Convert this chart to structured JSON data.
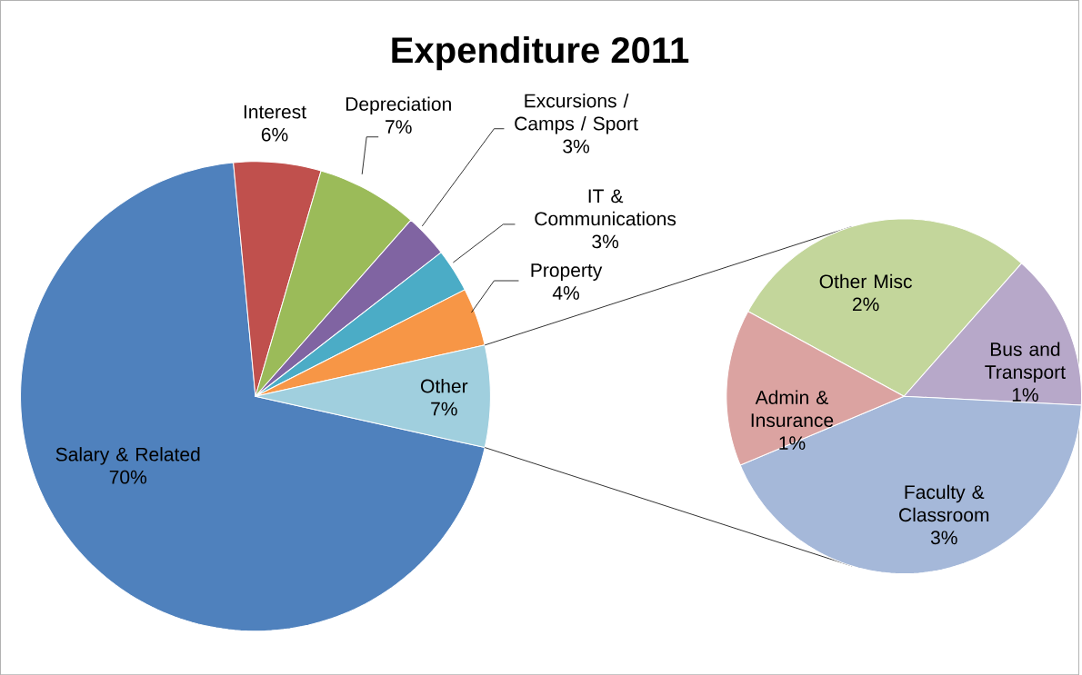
{
  "chart_data": [
    {
      "type": "pie",
      "title": "Expenditure 2011",
      "categories": [
        "Salary & Related",
        "Interest",
        "Depreciation",
        "Excursions / Camps / Sport",
        "IT & Communications",
        "Property",
        "Other"
      ],
      "values": [
        70,
        6,
        7,
        3,
        3,
        4,
        7
      ],
      "colors": [
        "#4f81bd",
        "#c0504d",
        "#9bbb59",
        "#8064a2",
        "#4bacc6",
        "#f79646",
        "#a0cfde"
      ],
      "value_labels": [
        "70%",
        "6%",
        "7%",
        "3%",
        "3%",
        "4%",
        "7%"
      ]
    },
    {
      "type": "pie",
      "categories": [
        "Other Misc",
        "Bus and Transport",
        "Faculty & Classroom",
        "Admin & Insurance"
      ],
      "values": [
        2,
        1,
        3,
        1
      ],
      "colors": [
        "#c3d69b",
        "#b7a8c9",
        "#a5b8d9",
        "#dba3a1"
      ],
      "value_labels": [
        "2%",
        "1%",
        "3%",
        "1%"
      ]
    }
  ]
}
